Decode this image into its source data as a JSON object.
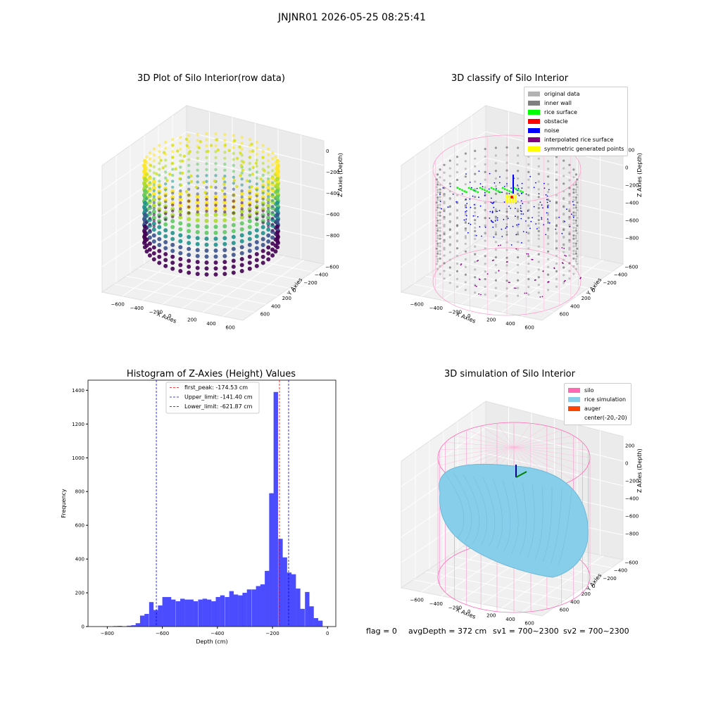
{
  "figure_title": "JNJNR01 2026-05-25 08:25:41",
  "footer": {
    "flag": "flag = 0",
    "avg_depth": "avgDepth = 372 cm",
    "sv1": "sv1 = 700~2300",
    "sv2": "sv2 = 700~2300"
  },
  "panels": {
    "raw": {
      "title": "3D Plot of Silo Interior(row data)",
      "xlabel": "X Axies",
      "ylabel": "Y Axies",
      "zlabel": "Z Axies (Depth)",
      "xticks": [
        "−600",
        "−400",
        "−200",
        "0",
        "200",
        "400",
        "600"
      ],
      "yticks": [
        "600",
        "400",
        "200",
        "0",
        "−200",
        "−400",
        "−600"
      ],
      "zticks": [
        "0",
        "−200",
        "−400",
        "−600",
        "−800"
      ]
    },
    "classify": {
      "title": "3D classify of Silo Interior",
      "xlabel": "X Axies",
      "ylabel": "Y Axies",
      "zlabel": "Z Axies (Depth)",
      "xticks": [
        "−600",
        "−400",
        "−200",
        "0",
        "200",
        "400",
        "600"
      ],
      "yticks": [
        "600",
        "400",
        "200",
        "0",
        "−200",
        "−400",
        "−600"
      ],
      "zticks": [
        "200",
        "0",
        "−200",
        "−400",
        "−600",
        "−800"
      ],
      "legend": [
        {
          "label": "original data",
          "color": "#b3b3b3"
        },
        {
          "label": "inner wall",
          "color": "#808080"
        },
        {
          "label": "rice surface",
          "color": "#00ff00"
        },
        {
          "label": "obstacle",
          "color": "#ff0000"
        },
        {
          "label": "noise",
          "color": "#0000ff"
        },
        {
          "label": "interpolated rice surface",
          "color": "#800080"
        },
        {
          "label": "symmetric generated points",
          "color": "#ffff00"
        }
      ]
    },
    "simulation": {
      "title": "3D simulation of Silo Interior",
      "xlabel": "X Axies",
      "ylabel": "Y Axies",
      "zlabel": "Z Axies (Depth)",
      "xticks": [
        "−600",
        "−400",
        "−200",
        "0",
        "200",
        "400",
        "600"
      ],
      "yticks": [
        "600",
        "400",
        "200",
        "0",
        "−200",
        "−400",
        "−600"
      ],
      "zticks": [
        "200",
        "0",
        "−200",
        "−400",
        "−600",
        "−800"
      ],
      "legend": [
        {
          "label": "silo",
          "color": "#ff69b4"
        },
        {
          "label": "rice simulation",
          "color": "#87ceeb"
        },
        {
          "label": "auger",
          "color": "#ff4500"
        },
        {
          "label": "center(-20,-20)",
          "color": "#ffffff"
        }
      ]
    }
  },
  "chart_data": {
    "type": "bar",
    "title": "Histogram of Z-Axies (Height) Values",
    "xlabel": "Depth (cm)",
    "ylabel": "Frequency",
    "xlim": [
      -870,
      30
    ],
    "ylim": [
      0,
      1460
    ],
    "xticks": [
      -800,
      -600,
      -400,
      -200,
      0
    ],
    "yticks": [
      0,
      200,
      400,
      600,
      800,
      1000,
      1200,
      1400
    ],
    "bar_color": "#0000ff",
    "bin_width": 16.2,
    "bin_starts": [
      -778,
      -762,
      -745,
      -729,
      -713,
      -697,
      -681,
      -665,
      -648,
      -632,
      -616,
      -600,
      -584,
      -568,
      -551,
      -535,
      -519,
      -503,
      -487,
      -470,
      -454,
      -438,
      -422,
      -406,
      -390,
      -373,
      -357,
      -341,
      -325,
      -309,
      -293,
      -276,
      -260,
      -244,
      -228,
      -212,
      -196,
      -179,
      -163,
      -147,
      -131,
      -115,
      -99,
      -82,
      -66,
      -50,
      -34,
      -18
    ],
    "values": [
      3,
      4,
      2,
      5,
      8,
      20,
      65,
      75,
      145,
      98,
      125,
      175,
      175,
      160,
      150,
      165,
      160,
      160,
      150,
      160,
      165,
      160,
      150,
      175,
      185,
      175,
      210,
      190,
      185,
      200,
      220,
      220,
      240,
      250,
      330,
      790,
      1390,
      520,
      410,
      320,
      310,
      225,
      105,
      205,
      120,
      50,
      35,
      0
    ],
    "lines": [
      {
        "label": "first_peak: -174.53 cm",
        "x": -174.53,
        "color": "#ff0000"
      },
      {
        "label": "Upper_limit: -141.40 cm",
        "x": -141.4,
        "color": "#0000ff"
      },
      {
        "label": "Lower_limit: -621.87 cm",
        "x": -621.87,
        "color": "#0000ff"
      }
    ]
  }
}
